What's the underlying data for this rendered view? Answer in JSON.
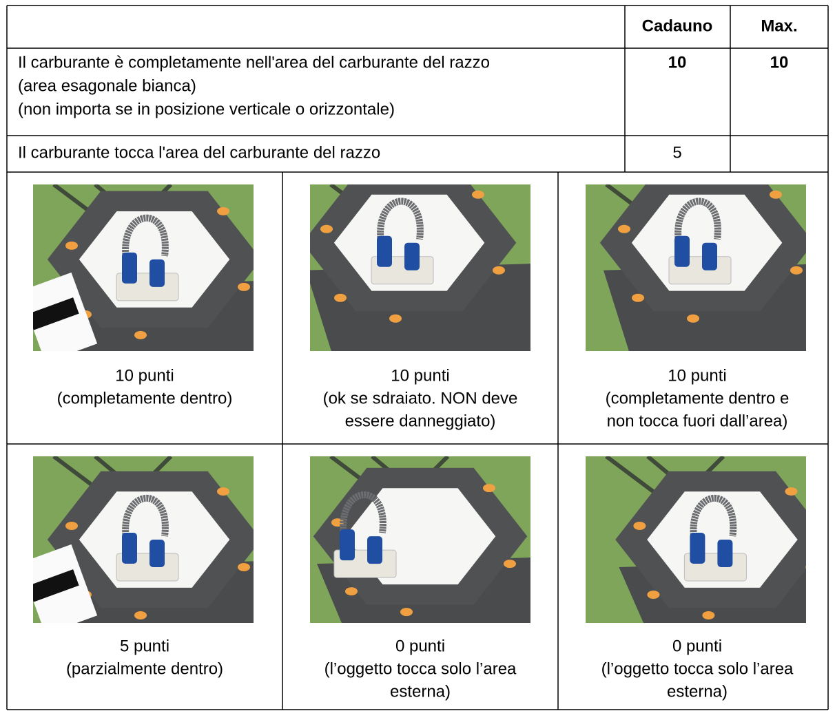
{
  "table": {
    "header": [
      "Cadauno",
      "Max."
    ],
    "rows": [
      {
        "description": [
          "Il carburante è completamente nell'area del carburante del razzo",
          "(area esagonale bianca)",
          "(non importa se in posizione verticale o orizzontale)"
        ],
        "each": "10",
        "max": "10"
      },
      {
        "description": [
          "Il carburante tocca l'area del carburante del razzo"
        ],
        "each": "5"
      }
    ]
  },
  "examples": [
    {
      "points": "10 punti",
      "note": [
        "(completamente dentro)"
      ]
    },
    {
      "points": "10 punti",
      "note": [
        "(ok se sdraiato. NON deve",
        "essere danneggiato)"
      ]
    },
    {
      "points": "10 punti",
      "note": [
        "(completamente dentro e",
        "non tocca fuori dall’area)"
      ]
    },
    {
      "points": "5 punti",
      "note": [
        "(parzialmente dentro)"
      ]
    },
    {
      "points": "0 punti",
      "note": [
        "(l’oggetto tocca solo l’area",
        "esterna)"
      ]
    },
    {
      "points": "0 punti",
      "note": [
        "(l’oggetto tocca solo l’area",
        "esterna)"
      ]
    }
  ]
}
